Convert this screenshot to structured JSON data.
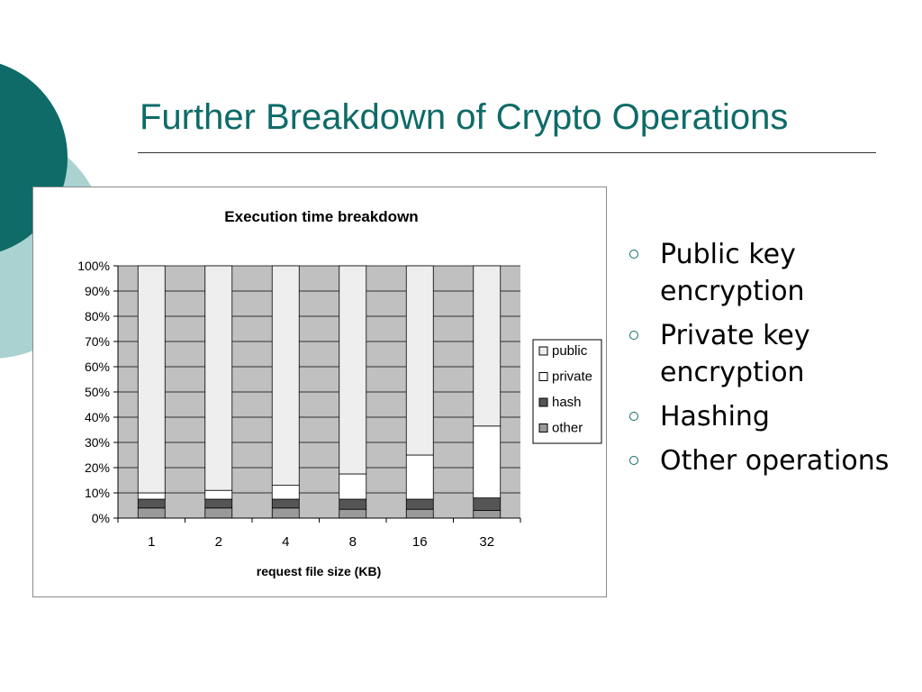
{
  "slide": {
    "title": "Further Breakdown of Crypto Operations",
    "bullets": [
      "Public key encryption",
      "Private key encryption",
      "Hashing",
      "Other operations"
    ]
  },
  "theme": {
    "title_color": "#0e6b68",
    "deco_dark": "#0e6b68",
    "deco_light": "#a9d2d1",
    "plot_bg": "#c0c0c0"
  },
  "chart_data": {
    "type": "bar",
    "stacked": true,
    "title": "Execution time breakdown",
    "xlabel": "request file size (KB)",
    "ylabel": "",
    "categories": [
      "1",
      "2",
      "4",
      "8",
      "16",
      "32"
    ],
    "ylim": [
      0,
      100
    ],
    "yticks": [
      "0%",
      "10%",
      "20%",
      "30%",
      "40%",
      "50%",
      "60%",
      "70%",
      "80%",
      "90%",
      "100%"
    ],
    "grid": true,
    "legend_position": "right",
    "series": [
      {
        "name": "other",
        "color": "#9a9a9a",
        "values": [
          4,
          4,
          4,
          3.5,
          3.5,
          3
        ]
      },
      {
        "name": "hash",
        "color": "#555555",
        "values": [
          3.5,
          3.5,
          3.5,
          4,
          4,
          5
        ]
      },
      {
        "name": "private",
        "color": "#ffffff",
        "values": [
          2.5,
          3.5,
          5.5,
          10,
          17.5,
          28.5
        ]
      },
      {
        "name": "public",
        "color": "#eeeeee",
        "values": [
          90,
          89,
          87,
          82.5,
          75,
          63.5
        ]
      }
    ],
    "legend_order": [
      "public",
      "private",
      "hash",
      "other"
    ]
  }
}
